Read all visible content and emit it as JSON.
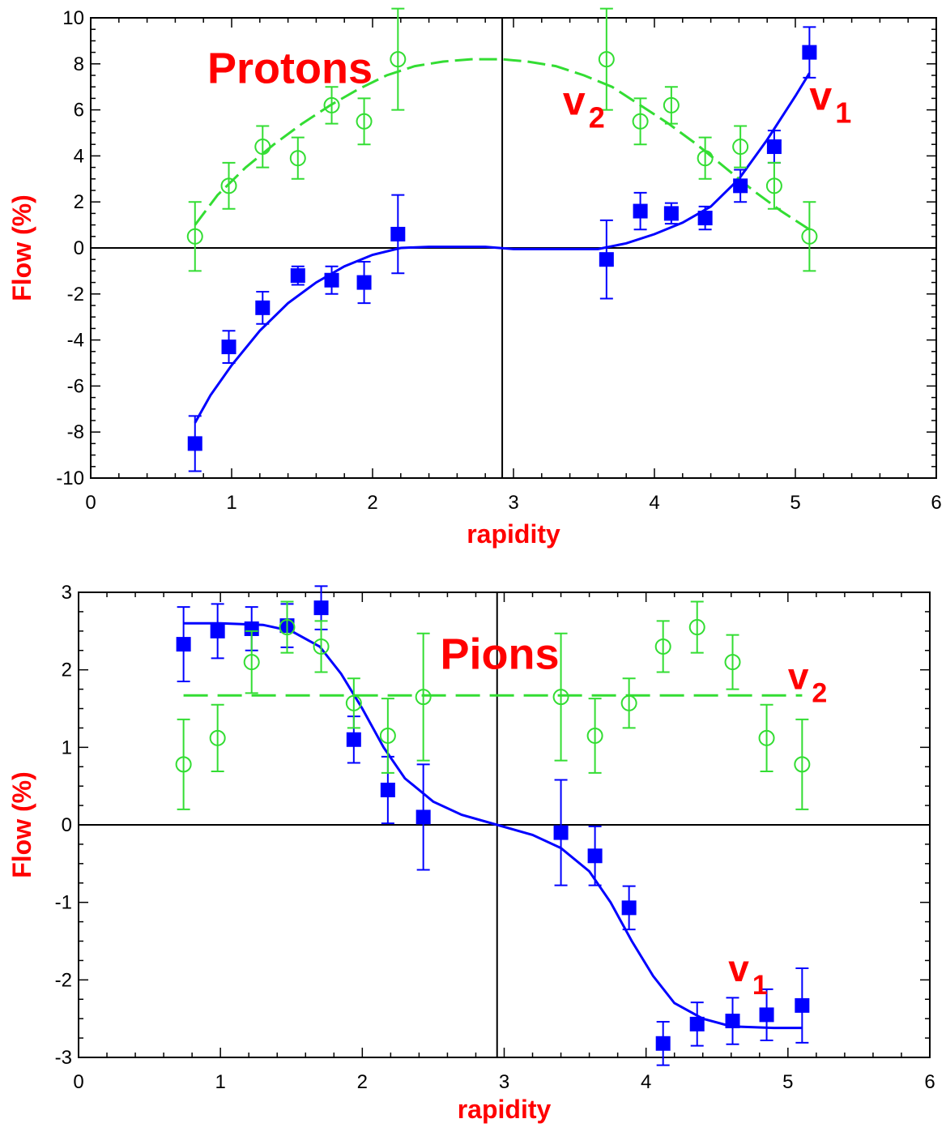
{
  "colors": {
    "label_red": "#ff0000",
    "v1_blue": "#0000ff",
    "v2_green": "#33dd33",
    "axis_black": "#000000"
  },
  "chart_data": [
    {
      "type": "scatter",
      "title": "Protons",
      "xlabel": "rapidity",
      "ylabel": "Flow (%)",
      "xlim": [
        0,
        6
      ],
      "ylim": [
        -10,
        10
      ],
      "xticks": [
        0,
        1,
        2,
        3,
        4,
        5,
        6
      ],
      "yticks": [
        -10,
        -8,
        -6,
        -4,
        -2,
        0,
        2,
        4,
        6,
        8,
        10
      ],
      "x_zero_line": 2.92,
      "series": [
        {
          "name": "v1",
          "name_main": "v",
          "name_sub": "1",
          "marker": "filled-square",
          "color": "#0000ff",
          "x": [
            0.74,
            0.98,
            1.22,
            1.47,
            1.71,
            1.94,
            2.18,
            3.66,
            3.9,
            4.12,
            4.36,
            4.61,
            4.85,
            5.1
          ],
          "y": [
            -8.5,
            -4.3,
            -2.6,
            -1.2,
            -1.4,
            -1.5,
            0.6,
            -0.5,
            1.6,
            1.5,
            1.3,
            2.7,
            4.4,
            8.5
          ],
          "err": [
            1.2,
            0.7,
            0.7,
            0.4,
            0.6,
            0.9,
            1.7,
            1.7,
            0.8,
            0.45,
            0.5,
            0.7,
            0.7,
            1.1
          ]
        },
        {
          "name": "v2",
          "name_main": "v",
          "name_sub": "2",
          "marker": "open-circle",
          "color": "#33dd33",
          "x": [
            0.74,
            0.98,
            1.22,
            1.47,
            1.71,
            1.94,
            2.18,
            3.66,
            3.9,
            4.12,
            4.36,
            4.61,
            4.85,
            5.1
          ],
          "y": [
            0.5,
            2.7,
            4.4,
            3.9,
            6.2,
            5.5,
            8.2,
            8.2,
            5.5,
            6.2,
            3.9,
            4.4,
            2.7,
            0.5
          ],
          "err": [
            1.5,
            1.0,
            0.9,
            0.9,
            0.8,
            1.0,
            2.2,
            2.2,
            1.0,
            0.8,
            0.9,
            0.9,
            1.0,
            1.5
          ]
        }
      ],
      "fits": [
        {
          "series": "v1",
          "style": "solid",
          "color": "#0000ff",
          "x": [
            0.74,
            0.85,
            1.0,
            1.2,
            1.4,
            1.6,
            1.8,
            2.0,
            2.2,
            2.4,
            2.6,
            2.8,
            3.0,
            3.2,
            3.4,
            3.6,
            3.8,
            4.0,
            4.2,
            4.4,
            4.6,
            4.8,
            5.0,
            5.1
          ],
          "y": [
            -7.6,
            -6.4,
            -5.1,
            -3.6,
            -2.4,
            -1.5,
            -0.8,
            -0.3,
            0.0,
            0.05,
            0.05,
            0.05,
            -0.05,
            -0.05,
            -0.05,
            -0.05,
            0.2,
            0.6,
            1.1,
            1.8,
            3.0,
            4.7,
            6.6,
            7.6
          ]
        },
        {
          "series": "v2",
          "style": "dashed",
          "color": "#33dd33",
          "x": [
            0.74,
            0.9,
            1.1,
            1.3,
            1.5,
            1.7,
            1.9,
            2.1,
            2.3,
            2.5,
            2.7,
            2.92,
            3.1,
            3.3,
            3.5,
            3.7,
            3.9,
            4.1,
            4.3,
            4.5,
            4.7,
            4.9,
            5.1
          ],
          "y": [
            1.0,
            2.3,
            3.5,
            4.5,
            5.4,
            6.2,
            6.9,
            7.5,
            7.9,
            8.1,
            8.2,
            8.2,
            8.1,
            7.9,
            7.5,
            7.0,
            6.2,
            5.4,
            4.5,
            3.5,
            2.5,
            1.6,
            0.8
          ]
        }
      ],
      "panel_labels": [
        {
          "text": "Protons",
          "x": 1.0,
          "y": 7.8
        },
        {
          "text_main": "v",
          "text_sub": "2",
          "x": 3.35,
          "y": 5.8
        },
        {
          "text_main": "v",
          "text_sub": "1",
          "x": 5.1,
          "y": 6.0
        }
      ]
    },
    {
      "type": "scatter",
      "title": "Pions",
      "xlabel": "rapidity",
      "ylabel": "Flow (%)",
      "xlim": [
        0,
        6
      ],
      "ylim": [
        -3,
        3
      ],
      "xticks": [
        0,
        1,
        2,
        3,
        4,
        5,
        6
      ],
      "yticks": [
        -3,
        -2,
        -1,
        0,
        1,
        2,
        3
      ],
      "x_zero_line": 2.95,
      "series": [
        {
          "name": "v1",
          "name_main": "v",
          "name_sub": "1",
          "marker": "filled-square",
          "color": "#0000ff",
          "x": [
            0.74,
            0.98,
            1.22,
            1.47,
            1.71,
            1.94,
            2.18,
            2.43,
            3.4,
            3.64,
            3.88,
            4.12,
            4.36,
            4.61,
            4.85,
            5.1
          ],
          "y": [
            2.33,
            2.5,
            2.53,
            2.57,
            2.8,
            1.1,
            0.45,
            0.1,
            -0.1,
            -0.4,
            -1.07,
            -2.82,
            -2.57,
            -2.53,
            -2.45,
            -2.33
          ],
          "err": [
            0.48,
            0.35,
            0.28,
            0.28,
            0.28,
            0.3,
            0.43,
            0.68,
            0.68,
            0.38,
            0.28,
            0.28,
            0.28,
            0.3,
            0.33,
            0.48
          ]
        },
        {
          "name": "v2",
          "name_main": "v",
          "name_sub": "2",
          "marker": "open-circle",
          "color": "#33dd33",
          "x": [
            0.74,
            0.98,
            1.22,
            1.47,
            1.71,
            1.94,
            2.18,
            2.43,
            3.4,
            3.64,
            3.88,
            4.12,
            4.36,
            4.61,
            4.85,
            5.1
          ],
          "y": [
            0.78,
            1.12,
            2.1,
            2.55,
            2.3,
            1.57,
            1.15,
            1.65,
            1.65,
            1.15,
            1.57,
            2.3,
            2.55,
            2.1,
            1.12,
            0.78
          ],
          "err": [
            0.58,
            0.43,
            0.4,
            0.33,
            0.33,
            0.32,
            0.48,
            0.82,
            0.82,
            0.48,
            0.32,
            0.33,
            0.33,
            0.35,
            0.43,
            0.58
          ]
        }
      ],
      "fits": [
        {
          "series": "v1",
          "style": "solid",
          "color": "#0000ff",
          "x": [
            0.74,
            1.0,
            1.3,
            1.5,
            1.7,
            1.85,
            2.0,
            2.15,
            2.3,
            2.5,
            2.7,
            2.95,
            3.2,
            3.4,
            3.6,
            3.75,
            3.9,
            4.05,
            4.2,
            4.4,
            4.6,
            4.9,
            5.1
          ],
          "y": [
            2.6,
            2.6,
            2.58,
            2.5,
            2.3,
            1.95,
            1.5,
            1.0,
            0.6,
            0.3,
            0.13,
            0.0,
            -0.13,
            -0.3,
            -0.6,
            -1.0,
            -1.5,
            -1.95,
            -2.3,
            -2.5,
            -2.6,
            -2.62,
            -2.62
          ]
        },
        {
          "series": "v2",
          "style": "dashed",
          "color": "#33dd33",
          "x": [
            0.74,
            5.1
          ],
          "y": [
            1.67,
            1.67
          ]
        }
      ],
      "panel_labels": [
        {
          "text": "Pions",
          "x": 2.72,
          "y": 2.2
        },
        {
          "text_main": "v",
          "text_sub": "2",
          "x": 5.0,
          "y": 1.75
        },
        {
          "text_main": "v",
          "text_sub": "1",
          "x": 4.58,
          "y": -2.02
        }
      ]
    }
  ]
}
